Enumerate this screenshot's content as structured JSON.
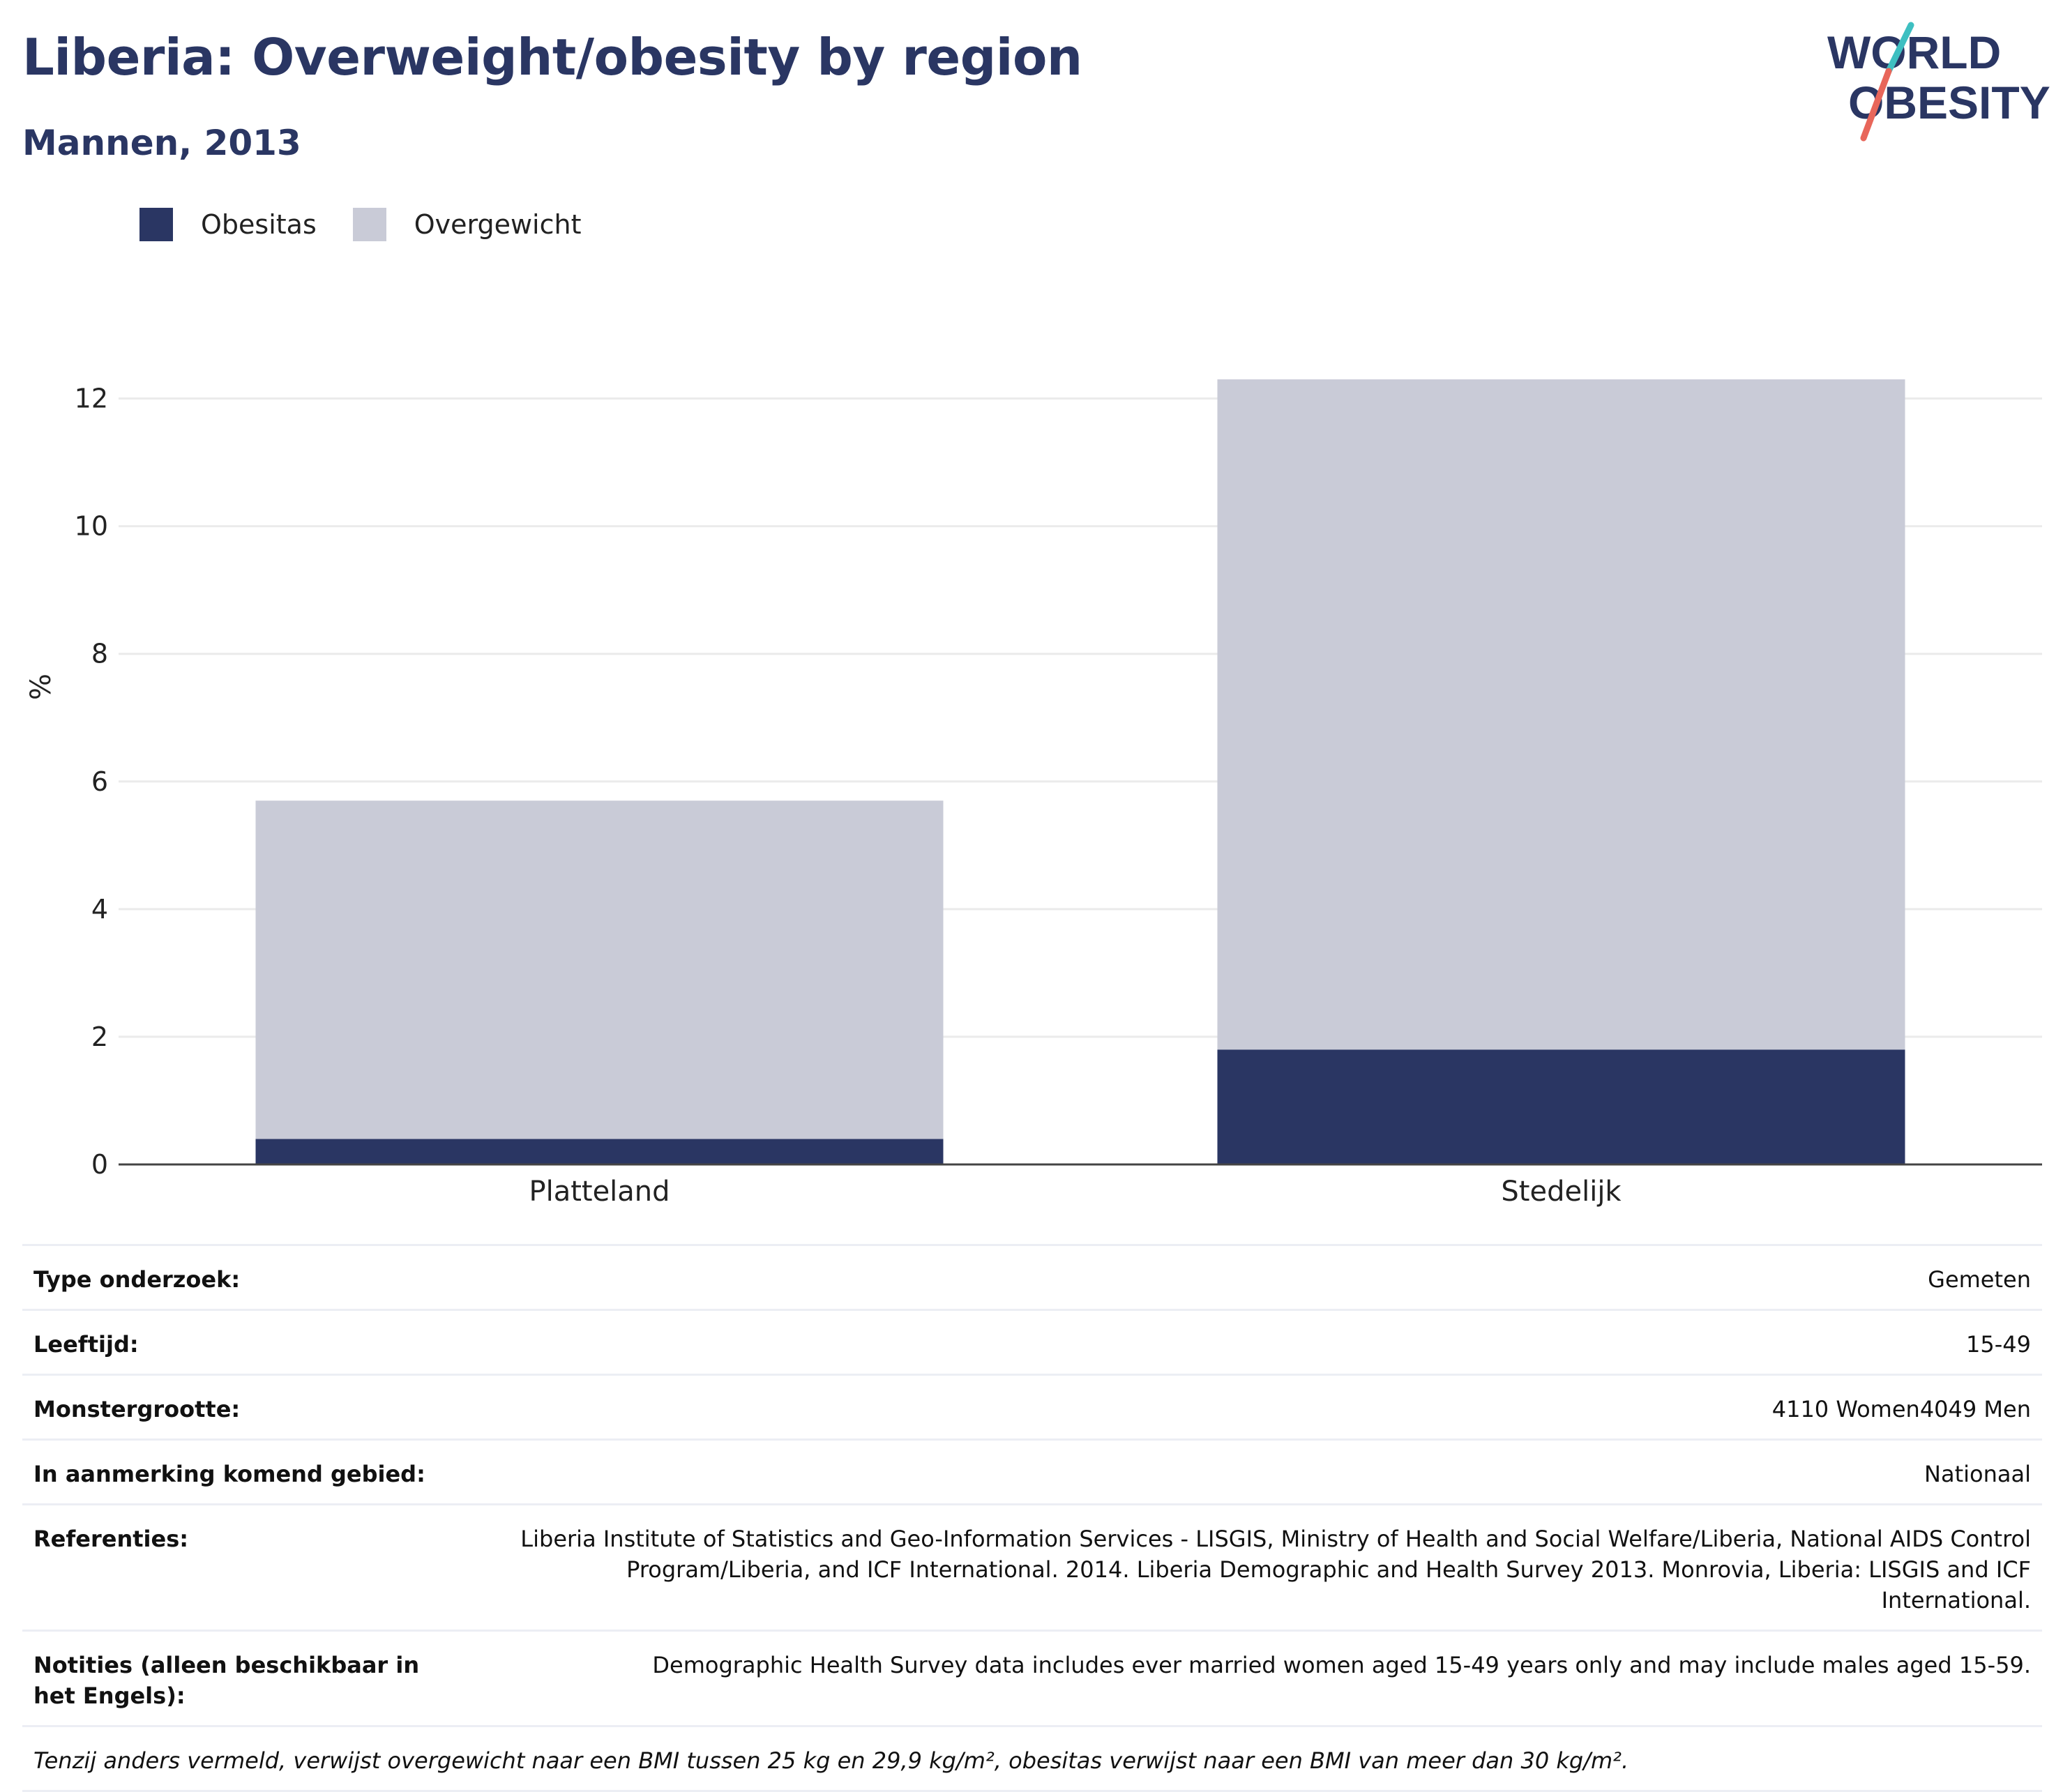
{
  "header": {
    "title": "Liberia: Overweight/obesity by region",
    "subtitle": "Mannen, 2013"
  },
  "logo": {
    "line1": "WORLD",
    "line2": "OBESITY"
  },
  "legend": [
    {
      "label": "Obesitas",
      "color": "#2a3663"
    },
    {
      "label": "Overgewicht",
      "color": "#c9cbd7"
    }
  ],
  "chart_data": {
    "type": "bar",
    "stacked": true,
    "categories": [
      "Platteland",
      "Stedelijk"
    ],
    "series": [
      {
        "name": "Obesitas",
        "color": "#2a3663",
        "values": [
          0.4,
          1.8
        ]
      },
      {
        "name": "Overgewicht",
        "color": "#c9cbd7",
        "values": [
          5.3,
          10.5
        ]
      }
    ],
    "ylabel": "%",
    "ylim": [
      0,
      13
    ],
    "yticks": [
      0,
      2,
      4,
      6,
      8,
      10,
      12
    ],
    "grid": true
  },
  "info": {
    "rows": [
      {
        "label": "Type onderzoek:",
        "value": "Gemeten"
      },
      {
        "label": "Leeftijd:",
        "value": "15-49"
      },
      {
        "label": "Monstergrootte:",
        "value": "4110 Women4049 Men"
      },
      {
        "label": "In aanmerking komend gebied:",
        "value": "Nationaal"
      },
      {
        "label": "Referenties:",
        "value": "Liberia Institute of Statistics and Geo-Information Services - LISGIS, Ministry of Health and Social Welfare/Liberia, National AIDS Control Program/Liberia, and ICF International. 2014. Liberia Demographic and Health Survey 2013. Monrovia, Liberia: LISGIS and ICF International."
      },
      {
        "label": "Notities (alleen beschikbaar in het Engels):",
        "value": "Demographic Health Survey data includes ever married women aged 15-49 years only and may include males aged 15-59."
      }
    ],
    "note": "Tenzij anders vermeld, verwijst overgewicht naar een BMI tussen 25 kg en 29,9 kg/m², obesitas verwijst naar een BMI van meer dan 30 kg/m²."
  }
}
